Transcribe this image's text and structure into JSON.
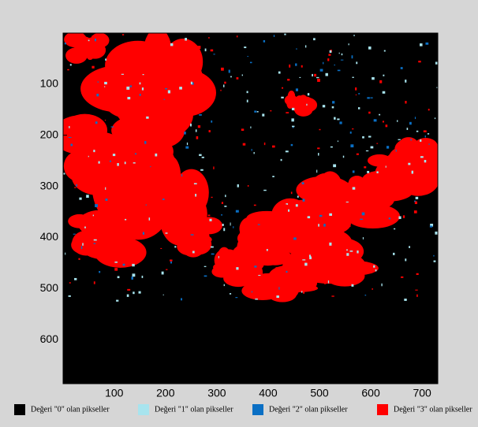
{
  "chart_data": {
    "type": "image",
    "xlim": [
      0.5,
      730.5
    ],
    "ylim": [
      0.5,
      685.5
    ],
    "xticks": [
      100,
      200,
      300,
      400,
      500,
      600,
      700
    ],
    "yticks": [
      100,
      200,
      300,
      400,
      500,
      600
    ],
    "y_reversed": true,
    "series": [
      {
        "name": "Değeri \"0\" olan pikseller",
        "color": "#000000"
      },
      {
        "name": "Değeri \"1\" olan pikseller",
        "color": "#a8e4ee"
      },
      {
        "name": "Değeri \"2\" olan pikseller",
        "color": "#0a6fc4"
      },
      {
        "name": "Değeri \"3\" olan pikseller",
        "color": "#ff0000"
      }
    ]
  }
}
